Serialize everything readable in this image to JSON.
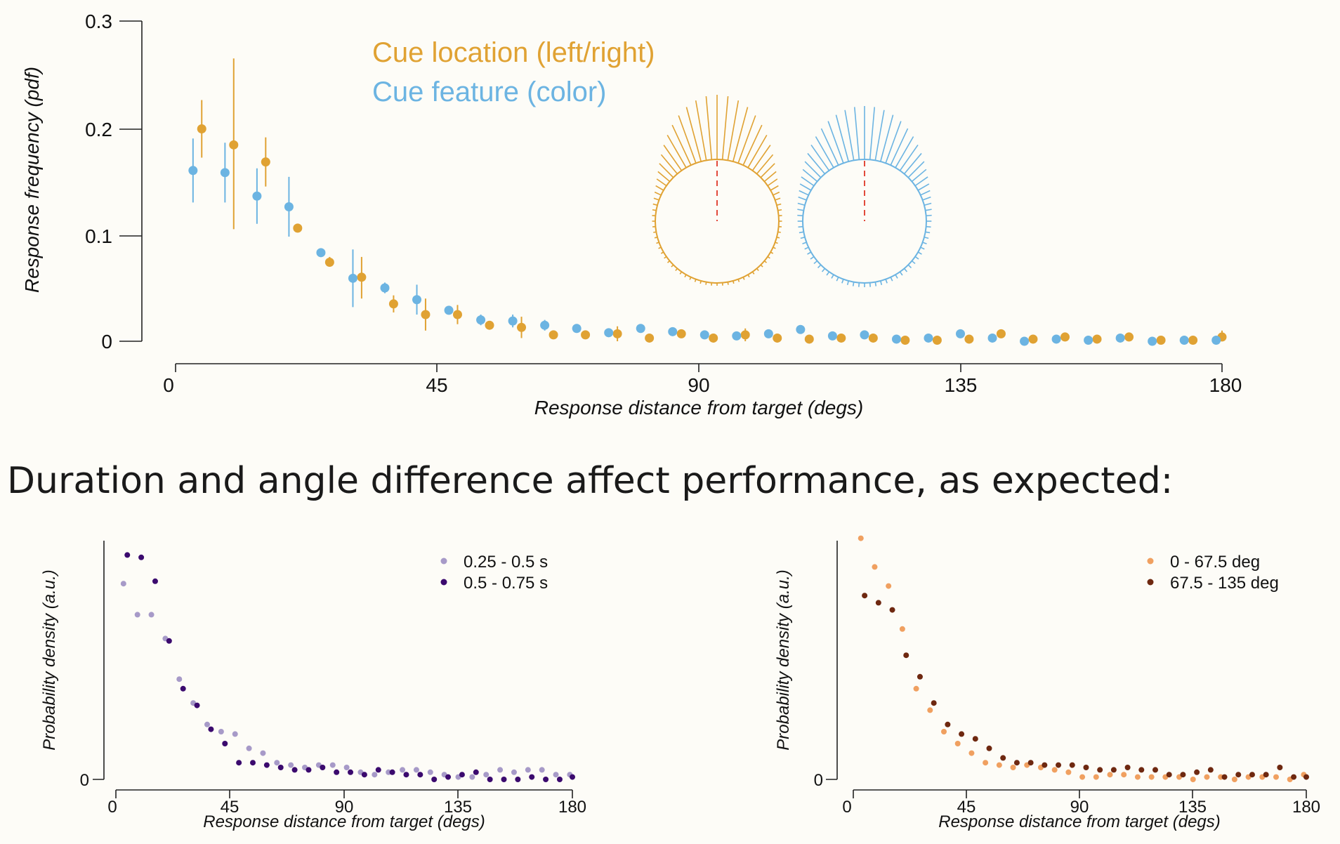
{
  "section_heading": "Duration and angle difference affect performance, as expected:",
  "colors": {
    "cue_location": "#e0a233",
    "cue_feature": "#6cb4e2",
    "dur_short": "#a79ac8",
    "dur_long": "#3b0a6e",
    "angle_small": "#f0a060",
    "angle_large": "#6e2810",
    "fixation_dash": "#e24a3b"
  },
  "chart_data": [
    {
      "id": "main",
      "type": "scatter",
      "xlabel": "Response distance from target (degs)",
      "ylabel": "Response frequency (pdf)",
      "xlim": [
        0,
        180
      ],
      "ylim": [
        0,
        0.3
      ],
      "xticks": [
        "0",
        "45",
        "90",
        "135",
        "180"
      ],
      "yticks": [
        "0",
        "0.1",
        "0.2",
        "0.3"
      ],
      "legend_position": "top-center",
      "series": [
        {
          "name": "Cue location (left/right)",
          "color": "#e0a233",
          "x": [
            4.5,
            10,
            15.5,
            21,
            26.5,
            32,
            37.5,
            43,
            48.5,
            54,
            59.5,
            65,
            70.5,
            76,
            81.5,
            87,
            92.5,
            98,
            103.5,
            109,
            114.5,
            120,
            125.5,
            131,
            136.5,
            142,
            147.5,
            153,
            158.5,
            164,
            169.5,
            175,
            180
          ],
          "y": [
            0.199,
            0.184,
            0.168,
            0.106,
            0.074,
            0.06,
            0.035,
            0.025,
            0.025,
            0.015,
            0.013,
            0.006,
            0.006,
            0.007,
            0.003,
            0.007,
            0.003,
            0.006,
            0.003,
            0.002,
            0.003,
            0.003,
            0.001,
            0.001,
            0.002,
            0.007,
            0.002,
            0.004,
            0.002,
            0.004,
            0.001,
            0.001,
            0.004
          ],
          "err_low": [
            0.172,
            0.105,
            0.145,
            0.106,
            0.07,
            0.04,
            0.027,
            0.01,
            0.016,
            0.013,
            0.003,
            0.005,
            0.002,
            0.0,
            0.002,
            0.006,
            0.002,
            0.0,
            0.0,
            0.002,
            0.002,
            0.002,
            0.0,
            0.0,
            0.001,
            0.006,
            0.0,
            0.002,
            0.0,
            0.001,
            0.0,
            0.0,
            0.0
          ],
          "err_high": [
            0.226,
            0.265,
            0.191,
            0.106,
            0.079,
            0.079,
            0.043,
            0.04,
            0.034,
            0.017,
            0.023,
            0.007,
            0.01,
            0.014,
            0.004,
            0.008,
            0.004,
            0.012,
            0.006,
            0.002,
            0.004,
            0.004,
            0.002,
            0.002,
            0.003,
            0.008,
            0.004,
            0.006,
            0.004,
            0.007,
            0.002,
            0.002,
            0.01
          ]
        },
        {
          "name": "Cue feature (color)",
          "color": "#6cb4e2",
          "x": [
            3,
            8.5,
            14,
            19.5,
            25,
            30.5,
            36,
            41.5,
            47,
            52.5,
            58,
            63.5,
            69,
            74.5,
            80,
            85.5,
            91,
            96.5,
            102,
            107.5,
            113,
            118.5,
            124,
            129.5,
            135,
            140.5,
            146,
            151.5,
            157,
            162.5,
            168,
            173.5,
            179
          ],
          "y": [
            0.16,
            0.158,
            0.136,
            0.126,
            0.083,
            0.059,
            0.05,
            0.039,
            0.029,
            0.02,
            0.019,
            0.015,
            0.012,
            0.008,
            0.012,
            0.009,
            0.006,
            0.005,
            0.007,
            0.011,
            0.005,
            0.006,
            0.002,
            0.003,
            0.007,
            0.003,
            0.0,
            0.002,
            0.001,
            0.003,
            0.0,
            0.001,
            0.001
          ],
          "err_low": [
            0.13,
            0.13,
            0.11,
            0.098,
            0.08,
            0.032,
            0.045,
            0.025,
            0.026,
            0.015,
            0.013,
            0.01,
            0.009,
            0.004,
            0.008,
            0.008,
            0.005,
            0.004,
            0.005,
            0.009,
            0.004,
            0.005,
            0.001,
            0.002,
            0.005,
            0.002,
            0.0,
            0.001,
            0.0,
            0.0,
            0.0,
            0.0,
            0.0
          ],
          "err_high": [
            0.19,
            0.186,
            0.162,
            0.154,
            0.086,
            0.086,
            0.055,
            0.053,
            0.032,
            0.025,
            0.025,
            0.02,
            0.015,
            0.012,
            0.016,
            0.01,
            0.007,
            0.006,
            0.009,
            0.013,
            0.006,
            0.007,
            0.003,
            0.004,
            0.009,
            0.004,
            0.001,
            0.003,
            0.002,
            0.006,
            0.001,
            0.002,
            0.002
          ]
        }
      ]
    },
    {
      "id": "duration",
      "type": "scatter",
      "xlabel": "Response distance from target (degs)",
      "ylabel": "Probability density (a.u.)",
      "xlim": [
        0,
        180
      ],
      "ylim": [
        0,
        1
      ],
      "xticks": [
        "0",
        "45",
        "90",
        "135",
        "180"
      ],
      "yticks": [
        "0"
      ],
      "legend_position": "top-right",
      "series": [
        {
          "name": "0.25 - 0.5 s",
          "color": "#a79ac8",
          "x": [
            3,
            8.5,
            14,
            19.5,
            25,
            30.5,
            36,
            41.5,
            47,
            52.5,
            58,
            63.5,
            69,
            74.5,
            80,
            85.5,
            91,
            96.5,
            102,
            107.5,
            113,
            118.5,
            124,
            129.5,
            135,
            140.5,
            146,
            151.5,
            157,
            162.5,
            168,
            173.5,
            179
          ],
          "y": [
            0.82,
            0.69,
            0.69,
            0.59,
            0.42,
            0.32,
            0.23,
            0.2,
            0.19,
            0.13,
            0.11,
            0.07,
            0.06,
            0.05,
            0.06,
            0.06,
            0.05,
            0.03,
            0.02,
            0.03,
            0.04,
            0.04,
            0.03,
            0.02,
            0.01,
            0.01,
            0.02,
            0.04,
            0.03,
            0.04,
            0.04,
            0.02,
            0.02
          ],
          "err_low": [],
          "err_high": []
        },
        {
          "name": "0.5 - 0.75 s",
          "color": "#3b0a6e",
          "x": [
            4.5,
            10,
            15.5,
            21,
            26.5,
            32,
            37.5,
            43,
            48.5,
            54,
            59.5,
            65,
            70.5,
            76,
            81.5,
            87,
            92.5,
            98,
            103.5,
            109,
            114.5,
            120,
            125.5,
            131,
            136.5,
            142,
            147.5,
            153,
            158.5,
            164,
            169.5,
            175,
            180
          ],
          "y": [
            0.94,
            0.93,
            0.83,
            0.58,
            0.38,
            0.31,
            0.21,
            0.15,
            0.07,
            0.07,
            0.06,
            0.05,
            0.04,
            0.04,
            0.05,
            0.03,
            0.03,
            0.02,
            0.04,
            0.03,
            0.02,
            0.02,
            0.0,
            0.01,
            0.02,
            0.03,
            0.0,
            0.0,
            0.0,
            0.01,
            0.0,
            0.0,
            0.01
          ],
          "err_low": [],
          "err_high": []
        }
      ]
    },
    {
      "id": "angle",
      "type": "scatter",
      "xlabel": "Response distance from target (degs)",
      "ylabel": "Probability density (a.u.)",
      "xlim": [
        0,
        180
      ],
      "ylim": [
        0,
        1
      ],
      "xticks": [
        "0",
        "45",
        "90",
        "135",
        "180"
      ],
      "yticks": [
        "0"
      ],
      "legend_position": "top-right",
      "series": [
        {
          "name": "0 - 67.5 deg",
          "color": "#f0a060",
          "x": [
            3,
            8.5,
            14,
            19.5,
            25,
            30.5,
            36,
            41.5,
            47,
            52.5,
            58,
            63.5,
            69,
            74.5,
            80,
            85.5,
            91,
            96.5,
            102,
            107.5,
            113,
            118.5,
            124,
            129.5,
            135,
            140.5,
            146,
            151.5,
            157,
            162.5,
            168,
            173.5,
            179
          ],
          "y": [
            1.01,
            0.89,
            0.81,
            0.63,
            0.38,
            0.29,
            0.2,
            0.15,
            0.11,
            0.07,
            0.06,
            0.05,
            0.06,
            0.05,
            0.04,
            0.03,
            0.01,
            0.01,
            0.02,
            0.02,
            0.01,
            0.01,
            0.01,
            0.01,
            0.0,
            0.01,
            0.01,
            0.0,
            0.01,
            0.01,
            0.01,
            0.0,
            0.02
          ],
          "err_low": [],
          "err_high": []
        },
        {
          "name": "67.5 - 135 deg",
          "color": "#6e2810",
          "x": [
            4.5,
            10,
            15.5,
            21,
            26.5,
            32,
            37.5,
            43,
            48.5,
            54,
            59.5,
            65,
            70.5,
            76,
            81.5,
            87,
            92.5,
            98,
            103.5,
            109,
            114.5,
            120,
            125.5,
            131,
            136.5,
            142,
            147.5,
            153,
            158.5,
            164,
            169.5,
            175,
            180
          ],
          "y": [
            0.77,
            0.74,
            0.71,
            0.52,
            0.43,
            0.32,
            0.23,
            0.19,
            0.17,
            0.13,
            0.09,
            0.07,
            0.07,
            0.06,
            0.06,
            0.06,
            0.05,
            0.04,
            0.04,
            0.05,
            0.04,
            0.04,
            0.02,
            0.02,
            0.03,
            0.04,
            0.01,
            0.02,
            0.02,
            0.02,
            0.05,
            0.01,
            0.01
          ],
          "err_low": [],
          "err_high": []
        }
      ]
    }
  ]
}
